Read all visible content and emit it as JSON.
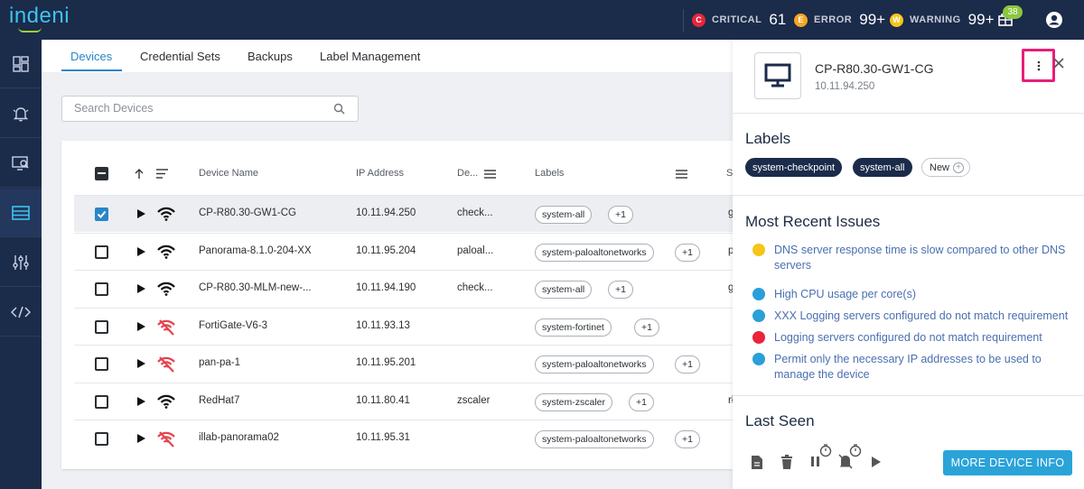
{
  "app": {
    "logo": "indeni"
  },
  "topbar": {
    "critical": {
      "badge": "C",
      "label": "CRITICAL",
      "count": "61",
      "color": "#e8253a"
    },
    "error": {
      "badge": "E",
      "label": "ERROR",
      "count": "99+",
      "color": "#f5a623"
    },
    "warning": {
      "badge": "W",
      "label": "WARNING",
      "count": "99+",
      "color": "#f8c51c"
    },
    "gift_badge": "38"
  },
  "tabs": [
    "Devices",
    "Credential Sets",
    "Backups",
    "Label Management"
  ],
  "search": {
    "placeholder": "Search Devices",
    "value": ""
  },
  "table": {
    "headers": {
      "name": "Device Name",
      "ip": "IP Address",
      "de": "De...",
      "labels": "Labels"
    },
    "rows": [
      {
        "name": "CP-R80.30-GW1-CG",
        "ip": "10.11.94.250",
        "de": "check...",
        "label": "system-all",
        "more": "+1",
        "clip": "g",
        "selected": true,
        "connected": true
      },
      {
        "name": "Panorama-8.1.0-204-XX",
        "ip": "10.11.95.204",
        "de": "paloal...",
        "label": "system-paloaltonetworks",
        "more": "+1",
        "clip": "p",
        "selected": false,
        "connected": true
      },
      {
        "name": "CP-R80.30-MLM-new-...",
        "ip": "10.11.94.190",
        "de": "check...",
        "label": "system-all",
        "more": "+1",
        "clip": "g",
        "selected": false,
        "connected": true
      },
      {
        "name": "FortiGate-V6-3",
        "ip": "10.11.93.13",
        "de": "",
        "label": "system-fortinet",
        "more": "+1",
        "clip": "",
        "selected": false,
        "connected": false
      },
      {
        "name": "pan-pa-1",
        "ip": "10.11.95.201",
        "de": "",
        "label": "system-paloaltonetworks",
        "more": "+1",
        "clip": "",
        "selected": false,
        "connected": false
      },
      {
        "name": "RedHat7",
        "ip": "10.11.80.41",
        "de": "zscaler",
        "label": "system-zscaler",
        "more": "+1",
        "clip": "rł",
        "selected": false,
        "connected": true
      },
      {
        "name": "illab-panorama02",
        "ip": "10.11.95.31",
        "de": "",
        "label": "system-paloaltonetworks",
        "more": "+1",
        "clip": "",
        "selected": false,
        "connected": false
      }
    ]
  },
  "panel": {
    "device_name": "CP-R80.30-GW1-CG",
    "device_ip": "10.11.94.250",
    "labels_title": "Labels",
    "labels": [
      "system-checkpoint",
      "system-all"
    ],
    "new_label": "New",
    "issues_title": "Most Recent Issues",
    "issues": [
      {
        "text": "DNS server response time is slow compared to other DNS servers",
        "color": "#f5c518"
      },
      {
        "text": "High CPU usage per core(s)",
        "color": "#2a9fd8"
      },
      {
        "text": "XXX Logging servers configured do not match requirement",
        "color": "#2a9fd8"
      },
      {
        "text": "Logging servers configured do not match requirement",
        "color": "#e8253a"
      },
      {
        "text": "Permit only the necessary IP addresses to be used to manage the device",
        "color": "#2a9fd8"
      }
    ],
    "last_seen_title": "Last Seen",
    "more_info": "MORE DEVICE INFO"
  }
}
